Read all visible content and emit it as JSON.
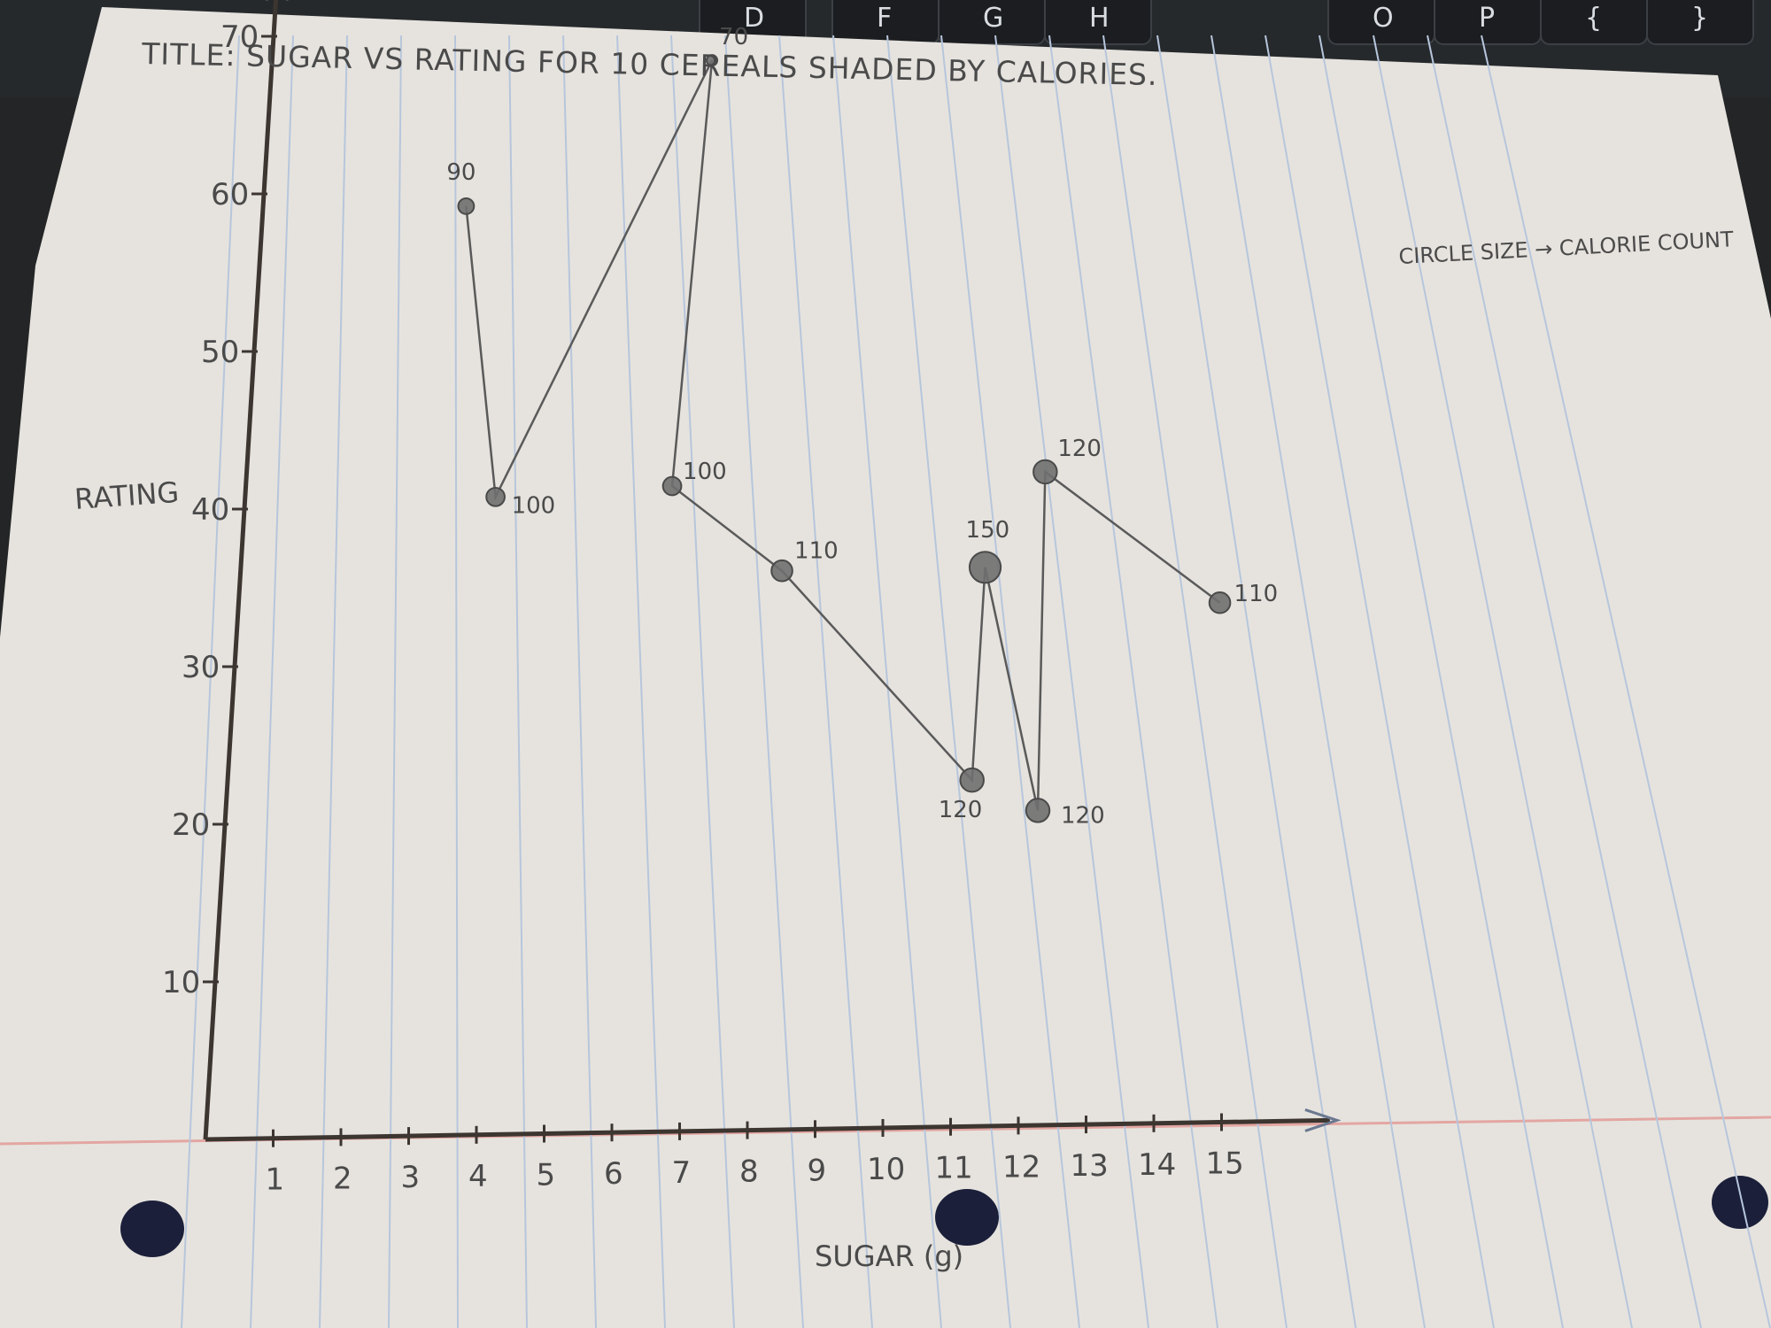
{
  "chart_data": {
    "type": "scatter",
    "title": "TITLE: SUGAR VS RATING FOR 10 CEREALS SHADED BY CALORIES.",
    "xlabel": "SUGAR (g)",
    "ylabel": "RATING",
    "xlim": [
      0,
      15
    ],
    "ylim": [
      0,
      70
    ],
    "x_ticks": [
      1,
      2,
      3,
      4,
      5,
      6,
      7,
      8,
      9,
      10,
      11,
      12,
      13,
      14,
      15
    ],
    "y_ticks": [
      10,
      20,
      30,
      40,
      50,
      60,
      70
    ],
    "note": "CIRCLE SIZE → CALORIE COUNT",
    "connected": true,
    "points": [
      {
        "x": 3,
        "y": 59,
        "calories": 90
      },
      {
        "x": 3.7,
        "y": 40.5,
        "calories": 100
      },
      {
        "x": 6.5,
        "y": 68,
        "calories": 70
      },
      {
        "x": 6.3,
        "y": 41,
        "calories": 100
      },
      {
        "x": 8,
        "y": 35.5,
        "calories": 110
      },
      {
        "x": 11,
        "y": 22,
        "calories": 120
      },
      {
        "x": 11,
        "y": 35.5,
        "calories": 150
      },
      {
        "x": 12,
        "y": 20,
        "calories": 120
      },
      {
        "x": 11.8,
        "y": 41.5,
        "calories": 120
      },
      {
        "x": 14.5,
        "y": 33,
        "calories": 110
      }
    ]
  },
  "keyboard_keys": [
    "D",
    "F",
    "G",
    "H",
    "O",
    "P",
    "{",
    "}"
  ]
}
